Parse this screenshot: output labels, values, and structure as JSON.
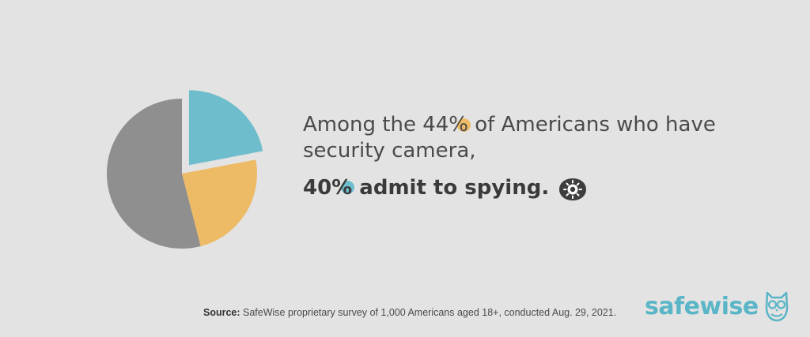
{
  "chart_data": {
    "type": "pie",
    "title": "",
    "slices": [
      {
        "value": 22,
        "color": "#6ebdcc",
        "exploded": true
      },
      {
        "value": 24,
        "color": "#edbb66",
        "exploded": false
      },
      {
        "value": 54,
        "color": "#8f8f8f",
        "exploded": false
      }
    ]
  },
  "headline": {
    "prefix": "Among the ",
    "highlight": "44%",
    "suffix": " of Americans who have security camera,"
  },
  "emphasis": {
    "highlight": "40%",
    "text": " admit to spying."
  },
  "source": {
    "label": "Source:",
    "text": " SafeWise proprietary survey of 1,000 Americans aged 18+, conducted Aug. 29, 2021."
  },
  "brand": {
    "name": "safewise",
    "color": "#5ab5c7",
    "icon": "owl-icon"
  },
  "icons": {
    "emphasis_icon": "eye-icon"
  }
}
